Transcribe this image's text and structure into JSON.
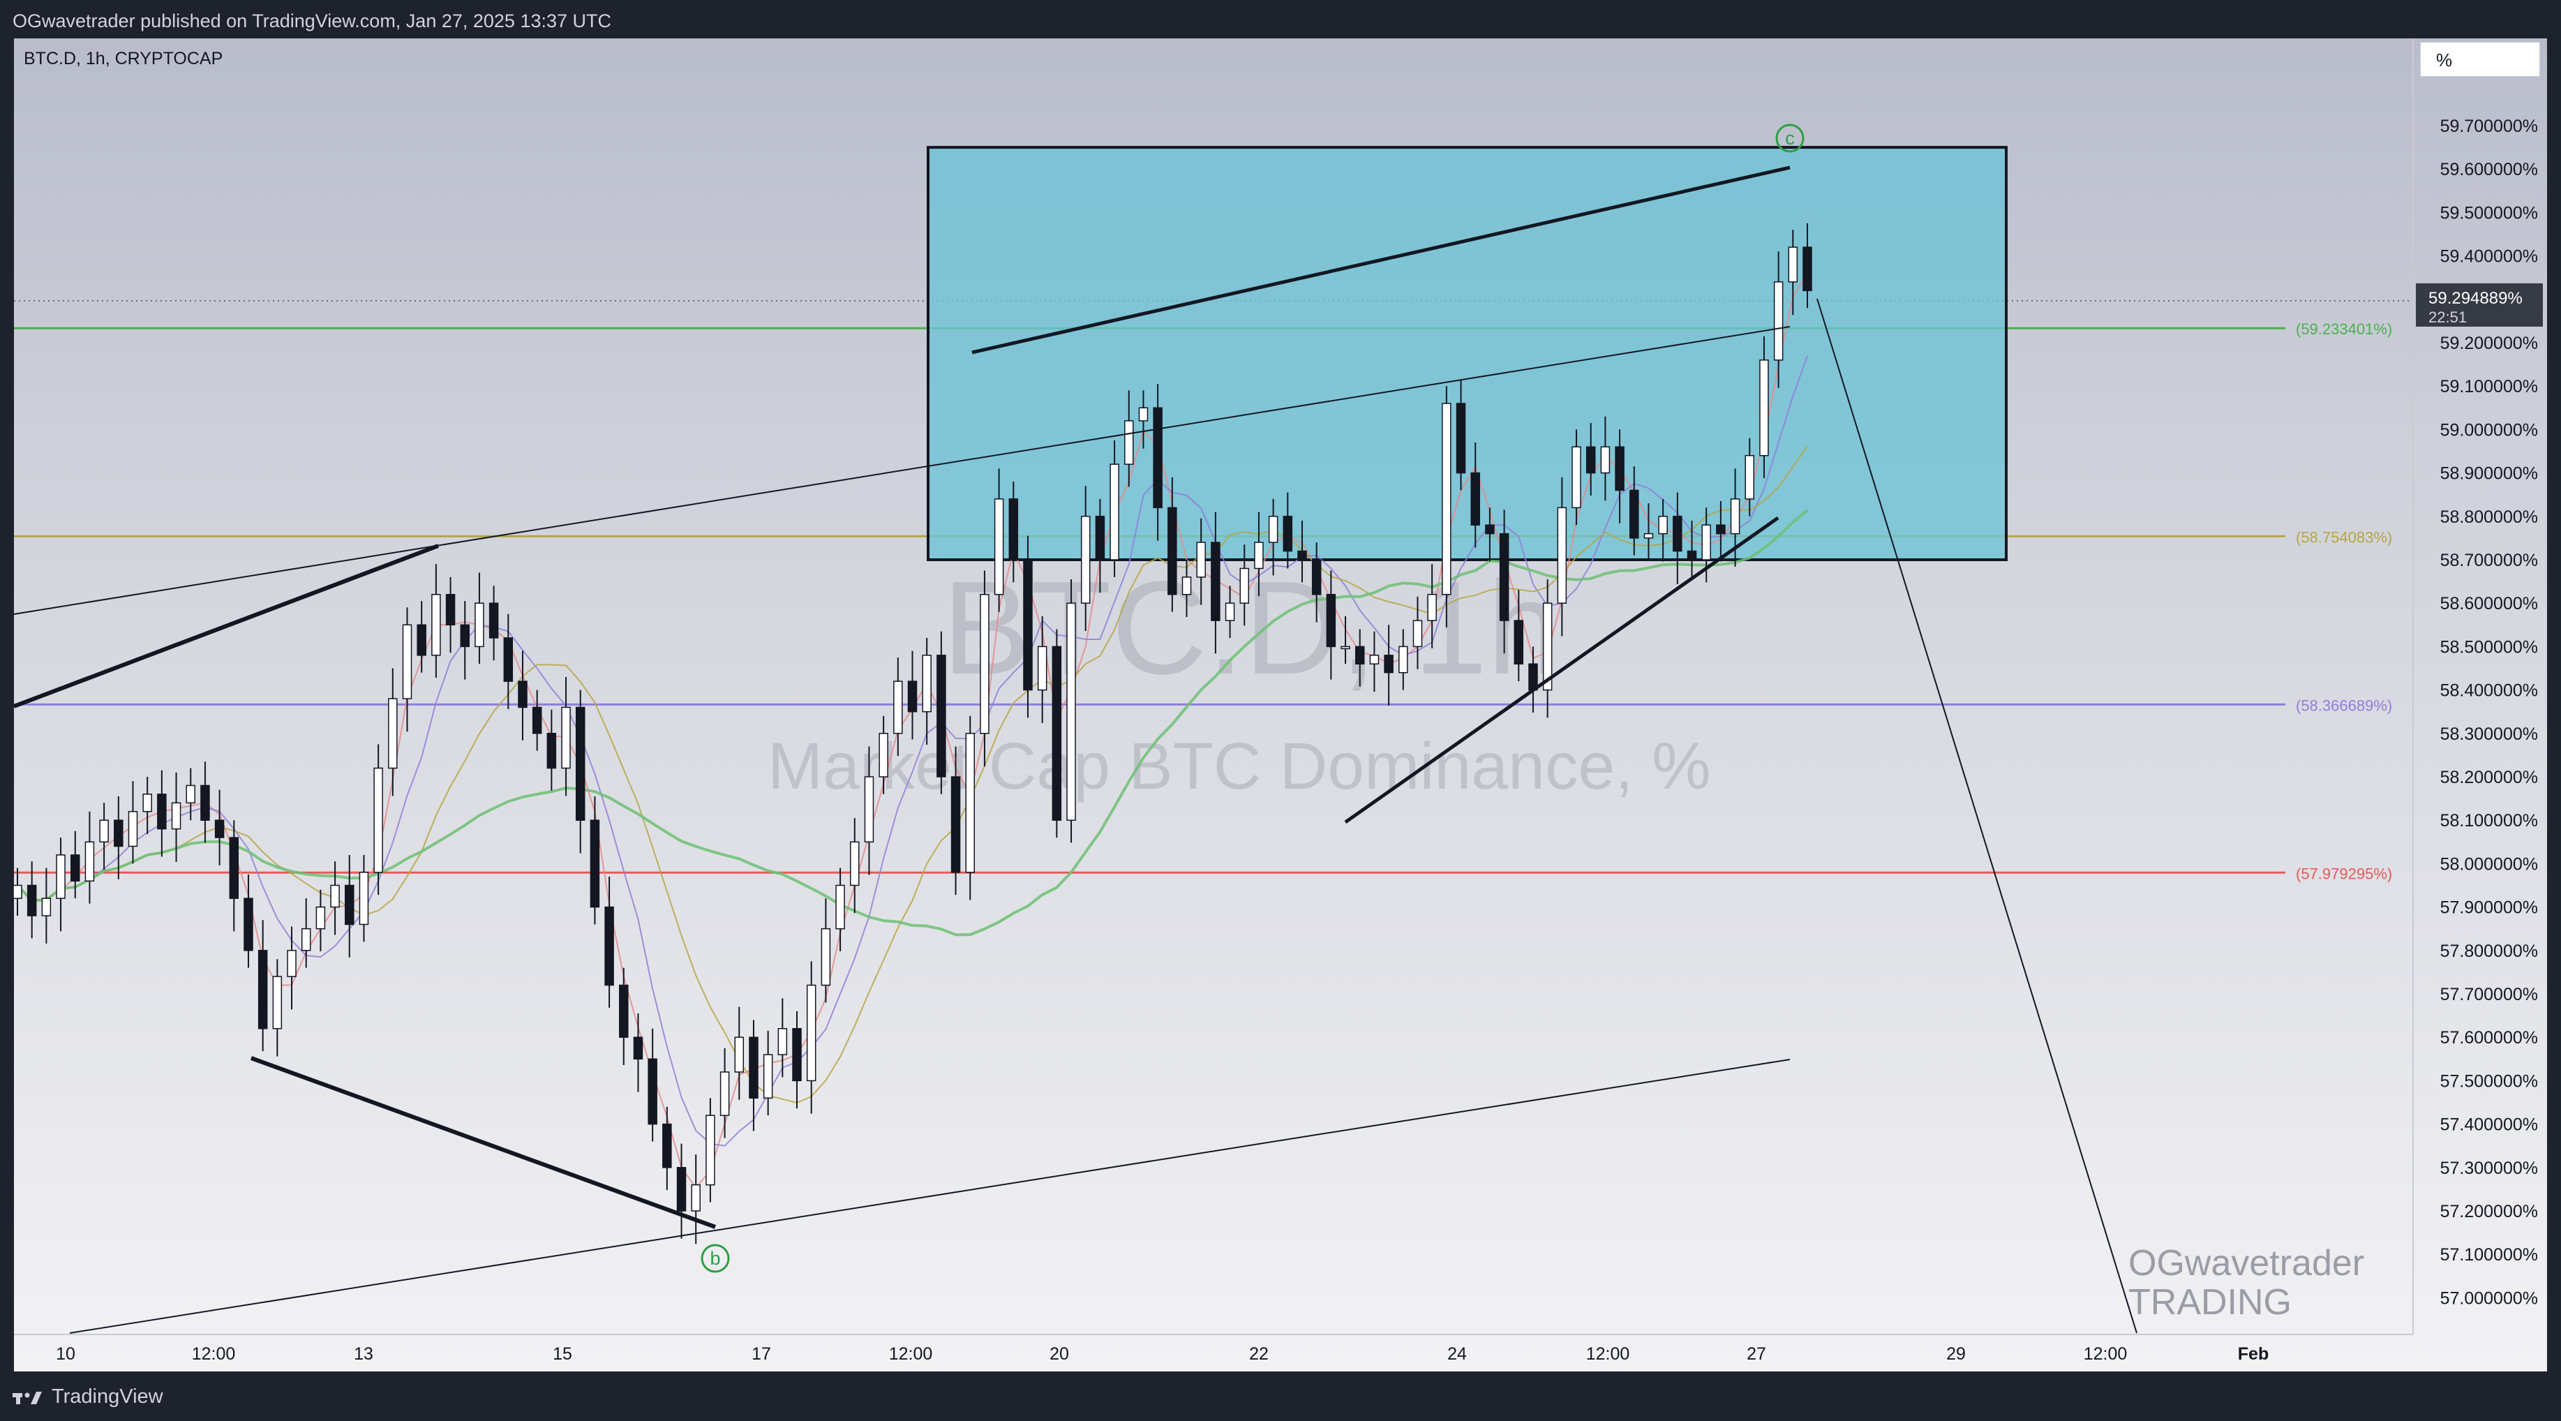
{
  "header": {
    "published": "OGwavetrader published on TradingView.com, Jan 27, 2025 13:37 UTC"
  },
  "symbol_title": "BTC.D, 1h, CRYPTOCAP",
  "scale_mode": "%",
  "watermark": {
    "symbol": "BTC.D, 1h",
    "description": "Market Cap BTC Dominance, %"
  },
  "brand": {
    "line1": "OGwavetrader",
    "line2": "TRADING"
  },
  "footer": {
    "logo_text": "TradingView"
  },
  "colors": {
    "box_fill": "#6cc3d6",
    "line_green": "#4caf50",
    "line_olive": "#b5a642",
    "line_purple": "#8f7fd8",
    "line_red": "#e55a5a",
    "price_label_bg": "#363a45",
    "wave_label": "#2e9e46"
  },
  "chart_data": {
    "type": "candlestick",
    "symbol": "BTC.D",
    "interval": "1h",
    "exchange": "CRYPTOCAP",
    "x_ticks": [
      "10",
      "12:00",
      "13",
      "15",
      "17",
      "12:00",
      "20",
      "22",
      "24",
      "12:00",
      "27",
      "29",
      "12:00",
      "Feb"
    ],
    "y_ticks": [
      "59.700000%",
      "59.600000%",
      "59.500000%",
      "59.400000%",
      "59.300000%",
      "59.200000%",
      "59.100000%",
      "59.000000%",
      "58.900000%",
      "58.800000%",
      "58.700000%",
      "58.600000%",
      "58.500000%",
      "58.400000%",
      "58.300000%",
      "58.200000%",
      "58.100000%",
      "58.000000%",
      "57.900000%",
      "57.800000%",
      "57.700000%",
      "57.600000%",
      "57.500000%",
      "57.400000%",
      "57.300000%",
      "57.200000%",
      "57.100000%",
      "57.000000%"
    ],
    "ylim": [
      56.95,
      59.75
    ],
    "current_price": {
      "value": 59.294889,
      "label": "59.294889%",
      "countdown": "22:51"
    },
    "horizontal_levels": [
      {
        "value": 59.233401,
        "label": "(59.233401%)",
        "color": "#4caf50"
      },
      {
        "value": 58.754083,
        "label": "(58.754083%)",
        "color": "#b5a642"
      },
      {
        "value": 58.366689,
        "label": "(58.366689%)",
        "color": "#8f7fd8"
      },
      {
        "value": 57.979295,
        "label": "(57.979295%)",
        "color": "#e55a5a"
      }
    ],
    "wave_labels": [
      {
        "text": "b",
        "value": 57.13
      },
      {
        "text": "c",
        "value": 59.67
      }
    ],
    "box": {
      "top": 59.65,
      "bottom": 58.7
    },
    "candles_close": [
      57.95,
      57.88,
      57.92,
      58.02,
      57.96,
      58.05,
      58.1,
      58.04,
      58.12,
      58.16,
      58.08,
      58.14,
      58.18,
      58.1,
      58.06,
      57.92,
      57.8,
      57.62,
      57.74,
      57.8,
      57.85,
      57.9,
      57.95,
      57.86,
      57.98,
      58.22,
      58.38,
      58.55,
      58.48,
      58.62,
      58.55,
      58.5,
      58.6,
      58.52,
      58.42,
      58.36,
      58.3,
      58.22,
      58.36,
      58.1,
      57.9,
      57.72,
      57.6,
      57.55,
      57.4,
      57.3,
      57.2,
      57.26,
      57.42,
      57.52,
      57.6,
      57.46,
      57.56,
      57.62,
      57.5,
      57.72,
      57.85,
      57.95,
      58.05,
      58.2,
      58.3,
      58.42,
      58.35,
      58.48,
      58.2,
      57.98,
      58.3,
      58.62,
      58.84,
      58.7,
      58.4,
      58.5,
      58.1,
      58.6,
      58.8,
      58.7,
      58.92,
      59.02,
      59.05,
      58.82,
      58.62,
      58.66,
      58.74,
      58.56,
      58.6,
      58.68,
      58.74,
      58.8,
      58.72,
      58.7,
      58.62,
      58.5,
      58.5,
      58.46,
      58.48,
      58.44,
      58.5,
      58.56,
      58.62,
      59.06,
      58.9,
      58.78,
      58.76,
      58.56,
      58.46,
      58.4,
      58.6,
      58.82,
      58.96,
      58.9,
      58.96,
      58.86,
      58.75,
      58.76,
      58.8,
      58.72,
      58.7,
      58.78,
      58.76,
      58.84,
      58.94,
      59.16,
      59.34,
      59.42,
      59.32
    ]
  }
}
